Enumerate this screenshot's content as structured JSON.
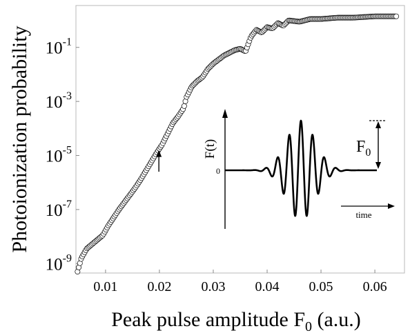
{
  "chart_data": {
    "type": "scatter",
    "xlabel": "Peak pulse amplitude F",
    "xlabel_sub": "0",
    "xlabel_suffix": " (a.u.)",
    "ylabel": "Photoionization probability",
    "xlim": [
      0.0045,
      0.0655
    ],
    "ylim_log10": [
      -9.35,
      0.55
    ],
    "y_scale": "log",
    "grid": false,
    "x_ticks": [
      {
        "value": 0.01,
        "label": "0.01"
      },
      {
        "value": 0.02,
        "label": "0.02"
      },
      {
        "value": 0.03,
        "label": "0.03"
      },
      {
        "value": 0.04,
        "label": "0.04"
      },
      {
        "value": 0.05,
        "label": "0.05"
      },
      {
        "value": 0.06,
        "label": "0.06"
      }
    ],
    "y_ticks": [
      {
        "log10": -1,
        "base": "10",
        "exp": "-1"
      },
      {
        "log10": -3,
        "base": "10",
        "exp": "-3"
      },
      {
        "log10": -5,
        "base": "10",
        "exp": "-5"
      },
      {
        "log10": -7,
        "base": "10",
        "exp": "-7"
      },
      {
        "log10": -9,
        "base": "10",
        "exp": "-9"
      }
    ],
    "series": [
      {
        "marker": "open-circle",
        "x_start": 0.0048,
        "x_step": 0.00022,
        "log10_y_anchors": [
          [
            0.0048,
            -9.3
          ],
          [
            0.0055,
            -8.8
          ],
          [
            0.0065,
            -8.45
          ],
          [
            0.008,
            -8.2
          ],
          [
            0.0095,
            -7.95
          ],
          [
            0.0105,
            -7.6
          ],
          [
            0.0115,
            -7.3
          ],
          [
            0.0125,
            -7.0
          ],
          [
            0.014,
            -6.6
          ],
          [
            0.0155,
            -6.2
          ],
          [
            0.0165,
            -5.9
          ],
          [
            0.018,
            -5.4
          ],
          [
            0.0195,
            -4.9
          ],
          [
            0.0205,
            -4.6
          ],
          [
            0.0215,
            -4.2
          ],
          [
            0.0225,
            -3.8
          ],
          [
            0.0235,
            -3.55
          ],
          [
            0.0245,
            -3.25
          ],
          [
            0.025,
            -2.85
          ],
          [
            0.026,
            -2.45
          ],
          [
            0.027,
            -2.25
          ],
          [
            0.028,
            -2.1
          ],
          [
            0.029,
            -1.8
          ],
          [
            0.03,
            -1.6
          ],
          [
            0.031,
            -1.45
          ],
          [
            0.032,
            -1.3
          ],
          [
            0.033,
            -1.2
          ],
          [
            0.034,
            -1.1
          ],
          [
            0.035,
            -1.05
          ],
          [
            0.036,
            -1.15
          ],
          [
            0.037,
            -0.6
          ],
          [
            0.038,
            -0.35
          ],
          [
            0.039,
            -0.45
          ],
          [
            0.04,
            -0.25
          ],
          [
            0.041,
            -0.3
          ],
          [
            0.042,
            -0.1
          ],
          [
            0.043,
            -0.2
          ],
          [
            0.044,
            0.0
          ],
          [
            0.046,
            -0.05
          ],
          [
            0.048,
            0.05
          ],
          [
            0.05,
            0.05
          ],
          [
            0.053,
            0.1
          ],
          [
            0.056,
            0.1
          ],
          [
            0.06,
            0.15
          ],
          [
            0.064,
            0.15
          ]
        ]
      }
    ],
    "annotations": [
      {
        "type": "arrow",
        "x": 0.0199,
        "log10_y_from": -5.6,
        "log10_y_to": -4.8
      }
    ],
    "inset": {
      "type": "line",
      "ylabel": "F(t)",
      "zero_label": "0",
      "time_label": "time",
      "amplitude_label": "F",
      "amplitude_sub": "0",
      "series": [
        {
          "name": "",
          "function": "cos(2π·6.5·t)·exp(-t²/0.07)",
          "t_range": [
            -1,
            1
          ]
        }
      ]
    }
  }
}
